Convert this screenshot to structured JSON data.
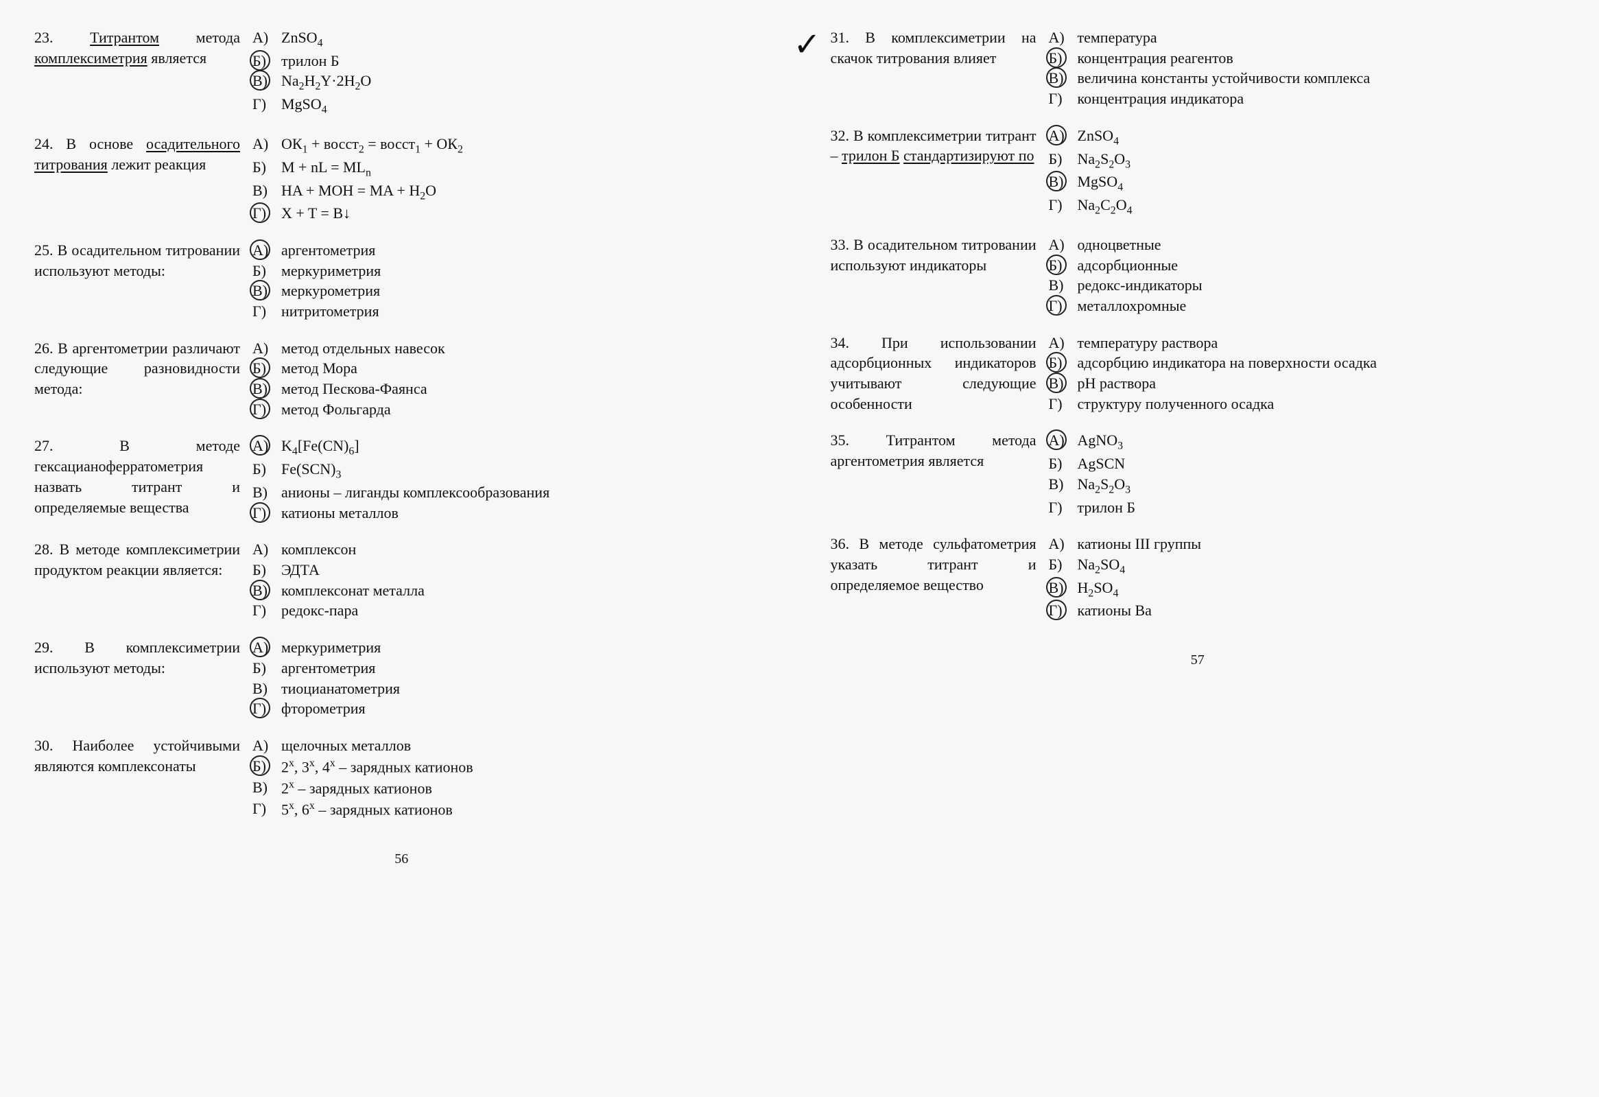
{
  "page_left_num": "56",
  "page_right_num": "57",
  "left": [
    {
      "num": "23.",
      "stem": "<span class='under'>Титрантом</span> метода <span class='under'>комплексиметрия</span> является",
      "opts": [
        {
          "l": "А)",
          "t": "ZnSO<sub>4</sub>",
          "c": false
        },
        {
          "l": "Б)",
          "t": "трилон Б",
          "c": true
        },
        {
          "l": "В)",
          "t": "Na<sub>2</sub>H<sub>2</sub>Y·2H<sub>2</sub>O",
          "c": true
        },
        {
          "l": "Г)",
          "t": "MgSO<sub>4</sub>",
          "c": false
        }
      ]
    },
    {
      "num": "24.",
      "stem": "В основе <span class='under'>осадительного титрования</span> лежит реакция",
      "opts": [
        {
          "l": "А)",
          "t": "ОК<sub>1</sub> + восст<sub>2</sub> = восст<sub>1</sub> + ОК<sub>2</sub>",
          "c": false
        },
        {
          "l": "Б)",
          "t": "M + nL = ML<sub>n</sub>",
          "c": false
        },
        {
          "l": "В)",
          "t": "HA + MOH = MA + H<sub>2</sub>O",
          "c": false
        },
        {
          "l": "Г)",
          "t": "X + T = B↓",
          "c": true
        }
      ]
    },
    {
      "num": "25.",
      "stem": "В осадительном титровании используют методы:",
      "opts": [
        {
          "l": "А)",
          "t": "аргентометрия",
          "c": true
        },
        {
          "l": "Б)",
          "t": "меркуриметрия",
          "c": false
        },
        {
          "l": "В)",
          "t": "меркурометрия",
          "c": true
        },
        {
          "l": "Г)",
          "t": "нитритометрия",
          "c": false
        }
      ]
    },
    {
      "num": "26.",
      "stem": "В аргентометрии различают следующие разновидности метода:",
      "opts": [
        {
          "l": "А)",
          "t": "метод отдельных навесок",
          "c": false
        },
        {
          "l": "Б)",
          "t": "метод Мора",
          "c": true
        },
        {
          "l": "В)",
          "t": "метод Пескова-Фаянса",
          "c": true
        },
        {
          "l": "Г)",
          "t": "метод Фольгарда",
          "c": true
        }
      ]
    },
    {
      "num": "27.",
      "stem": "В методе гексацианоферратометрия назвать титрант и определяемые вещества",
      "opts": [
        {
          "l": "А)",
          "t": "K<sub>4</sub>[Fe(CN)<sub>6</sub>]",
          "c": true
        },
        {
          "l": "Б)",
          "t": "Fe(SCN)<sub>3</sub>",
          "c": false
        },
        {
          "l": "В)",
          "t": "анионы – лиганды комплексообразования",
          "c": false
        },
        {
          "l": "Г)",
          "t": "катионы металлов",
          "c": true
        }
      ]
    },
    {
      "num": "28.",
      "stem": "В методе комплексиметрии продуктом реакции является:",
      "opts": [
        {
          "l": "А)",
          "t": "комплексон",
          "c": false
        },
        {
          "l": "Б)",
          "t": "ЭДТА",
          "c": false
        },
        {
          "l": "В)",
          "t": "комплексонат металла",
          "c": true
        },
        {
          "l": "Г)",
          "t": "редокс-пара",
          "c": false
        }
      ]
    },
    {
      "num": "29.",
      "stem": "В комплексиметрии используют методы:",
      "opts": [
        {
          "l": "А)",
          "t": "меркуриметрия",
          "c": true
        },
        {
          "l": "Б)",
          "t": "аргентометрия",
          "c": false
        },
        {
          "l": "В)",
          "t": "тиоцианатометрия",
          "c": false
        },
        {
          "l": "Г)",
          "t": "фторометрия",
          "c": true
        }
      ]
    },
    {
      "num": "30.",
      "stem": "Наиболее устойчивыми являются комплексонаты",
      "opts": [
        {
          "l": "А)",
          "t": "щелочных металлов",
          "c": false
        },
        {
          "l": "Б)",
          "t": "2<sup>х</sup>, 3<sup>х</sup>, 4<sup>х</sup> – зарядных катионов",
          "c": true
        },
        {
          "l": "В)",
          "t": "2<sup>х</sup> – зарядных катионов",
          "c": false
        },
        {
          "l": "Г)",
          "t": "5<sup>х</sup>, 6<sup>х</sup> – зарядных катионов",
          "c": false
        }
      ]
    }
  ],
  "right": [
    {
      "num": "31.",
      "tick": true,
      "stem": "В комплексиметрии на скачок титрования влияет",
      "opts": [
        {
          "l": "А)",
          "t": "температура",
          "c": false
        },
        {
          "l": "Б)",
          "t": "концентрация реагентов",
          "c": true
        },
        {
          "l": "В)",
          "t": "величина константы устойчивости комплекса",
          "c": true
        },
        {
          "l": "Г)",
          "t": "концентрация индикатора",
          "c": false
        }
      ]
    },
    {
      "num": "32.",
      "stem": "В комплексиметрии титрант – <span class='under'>трилон Б</span> <span class='under'>стандартизируют по</span>",
      "opts": [
        {
          "l": "А)",
          "t": "ZnSO<sub>4</sub>",
          "c": true
        },
        {
          "l": "Б)",
          "t": "Na<sub>2</sub>S<sub>2</sub>O<sub>3</sub>",
          "c": false
        },
        {
          "l": "В)",
          "t": "MgSO<sub>4</sub>",
          "c": true
        },
        {
          "l": "Г)",
          "t": "Na<sub>2</sub>C<sub>2</sub>O<sub>4</sub>",
          "c": false
        }
      ]
    },
    {
      "num": "33.",
      "stem": "В осадительном титровании используют индикаторы",
      "opts": [
        {
          "l": "А)",
          "t": "одноцветные",
          "c": false
        },
        {
          "l": "Б)",
          "t": "адсорбционные",
          "c": true
        },
        {
          "l": "В)",
          "t": "редокс-индикаторы",
          "c": false
        },
        {
          "l": "Г)",
          "t": "металлохромные",
          "c": true
        }
      ]
    },
    {
      "num": "34.",
      "stem": "При использовании адсорбционных индикаторов учитывают следующие особенности",
      "opts": [
        {
          "l": "А)",
          "t": "температуру раствора",
          "c": false
        },
        {
          "l": "Б)",
          "t": "адсорбцию индикатора на поверхности осадка",
          "c": true
        },
        {
          "l": "В)",
          "t": "pH раствора",
          "c": true
        },
        {
          "l": "Г)",
          "t": "структуру полученного осадка",
          "c": false
        }
      ]
    },
    {
      "num": "35.",
      "stem": "Титрантом метода аргентометрия является",
      "opts": [
        {
          "l": "А)",
          "t": "AgNO<sub>3</sub>",
          "c": true
        },
        {
          "l": "Б)",
          "t": "AgSCN",
          "c": false
        },
        {
          "l": "В)",
          "t": "Na<sub>2</sub>S<sub>2</sub>O<sub>3</sub>",
          "c": false
        },
        {
          "l": "Г)",
          "t": "трилон Б",
          "c": false
        }
      ]
    },
    {
      "num": "36.",
      "stem": "В методе сульфатометрия указать титрант и определяемое вещество",
      "opts": [
        {
          "l": "А)",
          "t": "катионы III группы",
          "c": false
        },
        {
          "l": "Б)",
          "t": "Na<sub>2</sub>SO<sub>4</sub>",
          "c": false
        },
        {
          "l": "В)",
          "t": "H<sub>2</sub>SO<sub>4</sub>",
          "c": true
        },
        {
          "l": "Г)",
          "t": "катионы Ba",
          "c": true
        }
      ]
    }
  ]
}
